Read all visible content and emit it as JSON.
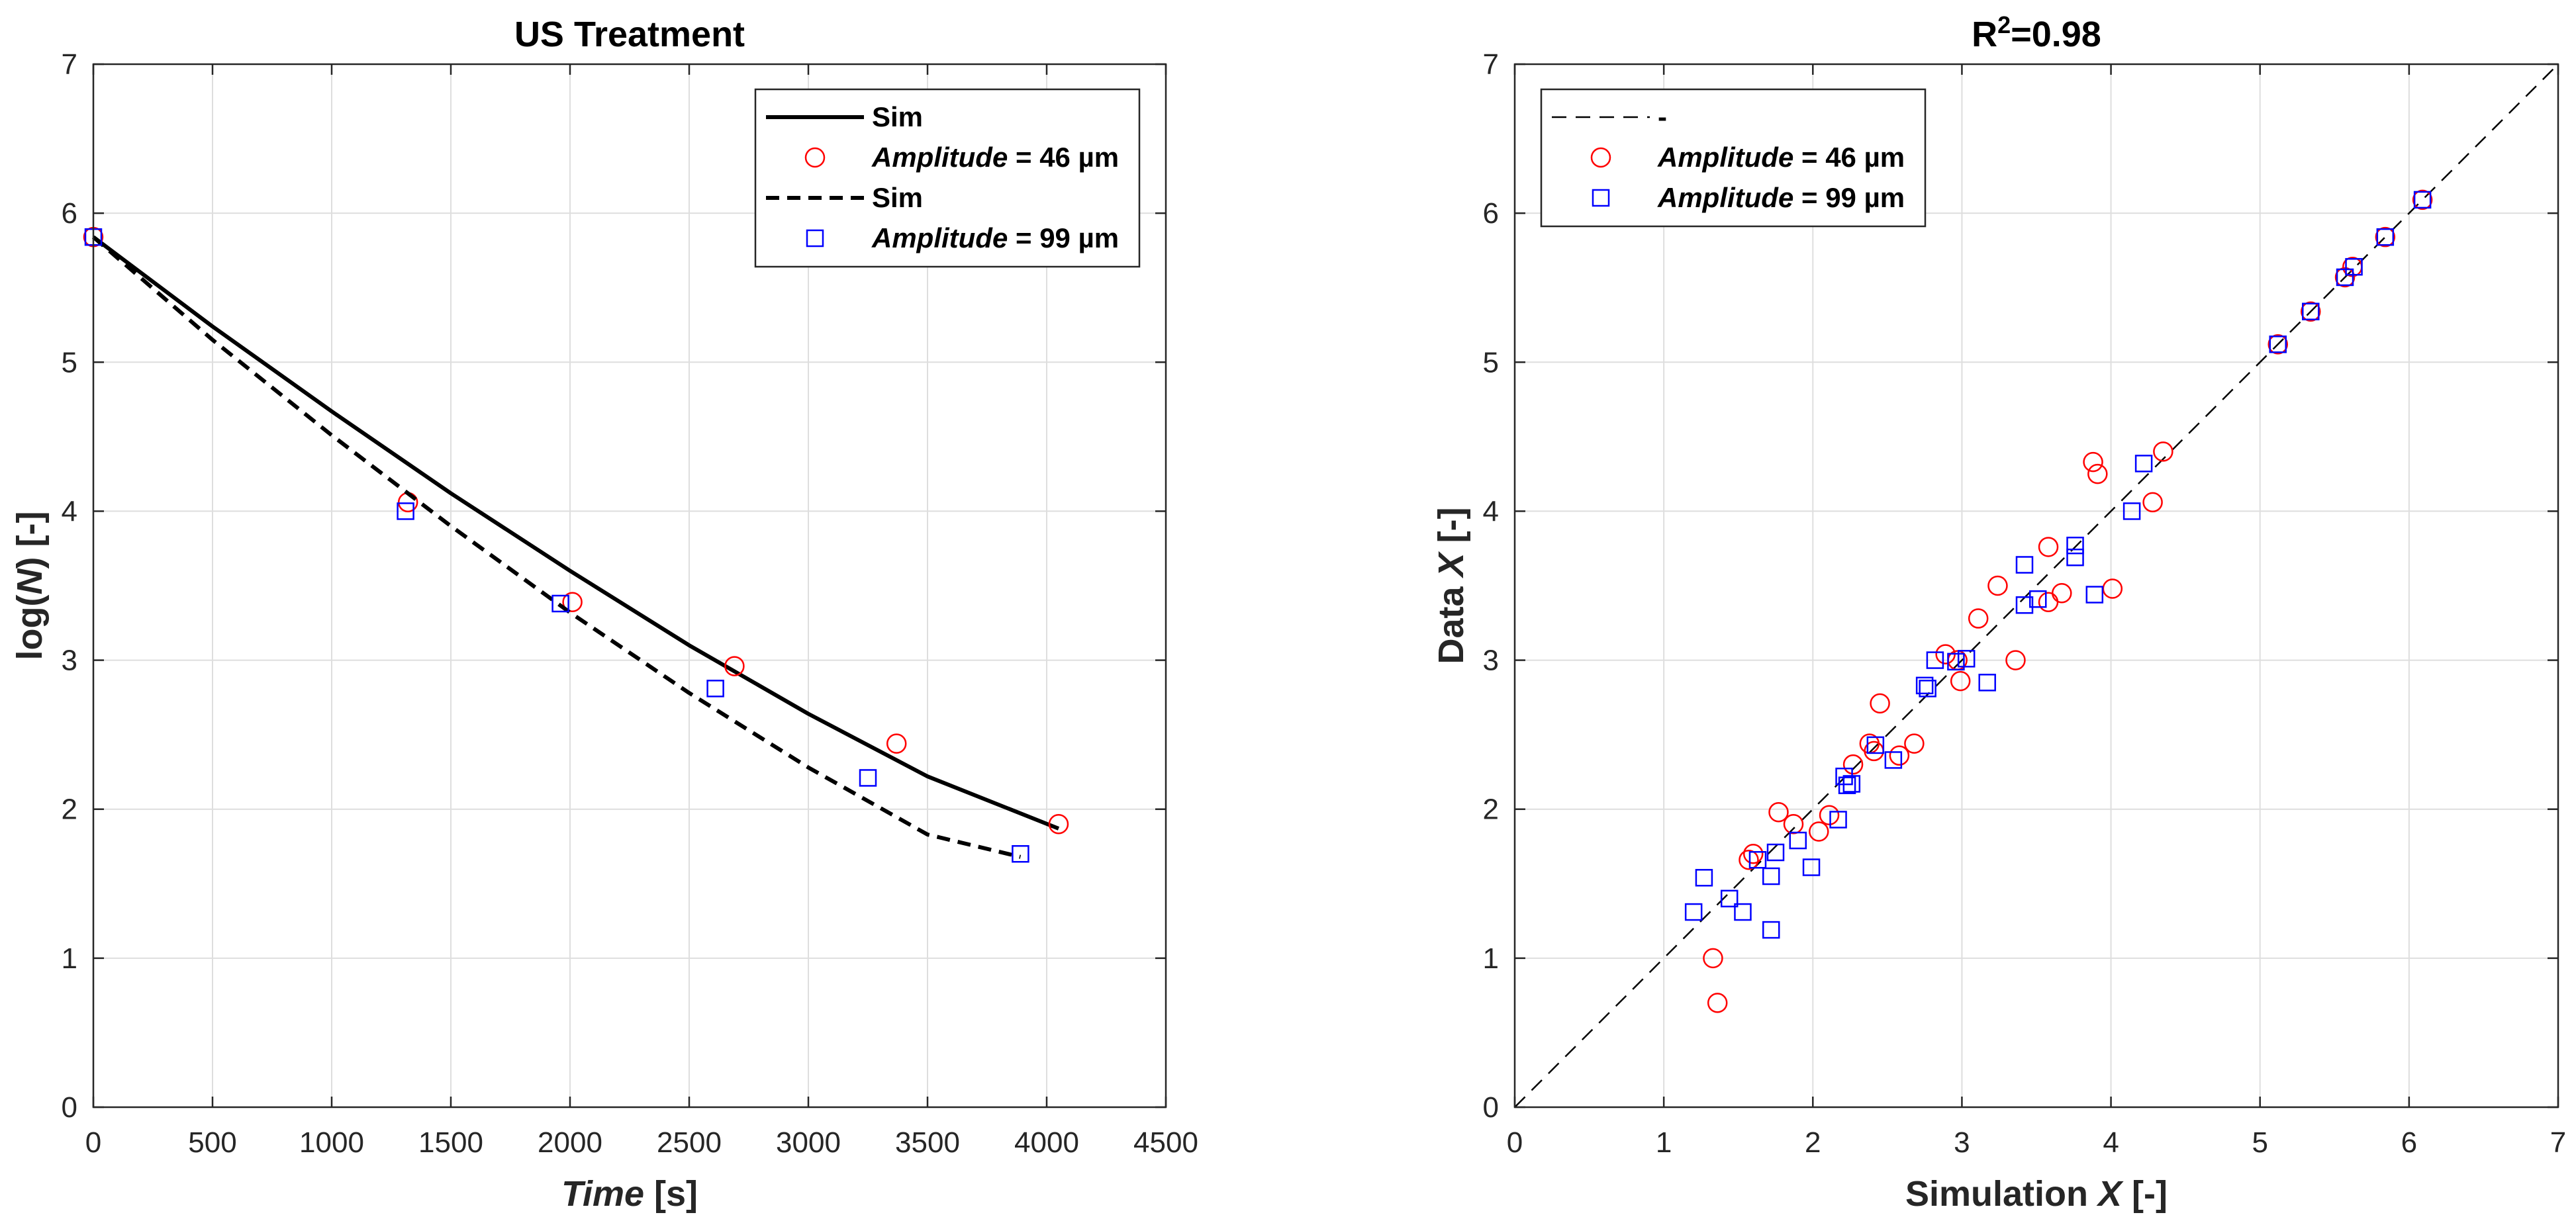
{
  "chart_data": [
    {
      "type": "line",
      "title": "US Treatment",
      "xlabel": {
        "italic": "Time",
        "plain": " [s]"
      },
      "ylabel": {
        "pre": "log(",
        "italic": "N",
        "post": ") [-]"
      },
      "xlim": [
        0,
        4500
      ],
      "ylim": [
        0,
        7
      ],
      "xticks": [
        0,
        500,
        1000,
        1500,
        2000,
        2500,
        3000,
        3500,
        4000,
        4500
      ],
      "yticks": [
        0,
        1,
        2,
        3,
        4,
        5,
        6,
        7
      ],
      "grid": true,
      "legend_position": "top-right",
      "legend": [
        {
          "style": "solid",
          "label": "Sim"
        },
        {
          "style": "circle",
          "italic": "Amplitude",
          "label": " = 46 µm"
        },
        {
          "style": "dashed",
          "label": "Sim"
        },
        {
          "style": "square",
          "italic": "Amplitude",
          "label": " = 99 µm"
        }
      ],
      "series": [
        {
          "name": "Sim (46 µm)",
          "kind": "line",
          "style": "solid",
          "color": "#000000",
          "x": [
            0,
            500,
            1000,
            1500,
            2000,
            2500,
            3000,
            3500,
            4050
          ],
          "y": [
            5.84,
            5.24,
            4.67,
            4.12,
            3.6,
            3.1,
            2.64,
            2.22,
            1.87
          ]
        },
        {
          "name": "Amplitude = 46 µm",
          "kind": "scatter",
          "marker": "circle",
          "color": "#ff0000",
          "x": [
            0,
            1320,
            2010,
            2690,
            3370,
            4050
          ],
          "y": [
            5.84,
            4.06,
            3.39,
            2.96,
            2.44,
            1.9
          ]
        },
        {
          "name": "Sim (99 µm)",
          "kind": "line",
          "style": "dashed",
          "color": "#000000",
          "x": [
            0,
            500,
            1000,
            1500,
            2000,
            2500,
            3000,
            3500,
            3890
          ],
          "y": [
            5.84,
            5.15,
            4.51,
            3.9,
            3.32,
            2.78,
            2.28,
            1.83,
            1.68
          ]
        },
        {
          "name": "Amplitude = 99 µm",
          "kind": "scatter",
          "marker": "square",
          "color": "#0000ff",
          "x": [
            0,
            1310,
            1960,
            2610,
            3250,
            3890
          ],
          "y": [
            5.84,
            4.0,
            3.38,
            2.81,
            2.21,
            1.7
          ]
        }
      ]
    },
    {
      "type": "scatter",
      "title": {
        "base": "R",
        "sup": "2",
        "rest": "=0.98"
      },
      "xlabel": {
        "pre": "Simulation ",
        "italic": "X",
        "post": " [-]"
      },
      "ylabel": {
        "pre": "Data ",
        "italic": "X",
        "post": " [-]"
      },
      "xlim": [
        0,
        7
      ],
      "ylim": [
        0,
        7
      ],
      "xticks": [
        0,
        1,
        2,
        3,
        4,
        5,
        6,
        7
      ],
      "yticks": [
        0,
        1,
        2,
        3,
        4,
        5,
        6,
        7
      ],
      "grid": true,
      "legend_position": "top-left",
      "legend": [
        {
          "style": "dashed-thin",
          "label": "-"
        },
        {
          "style": "circle",
          "italic": "Amplitude",
          "label": " = 46 µm"
        },
        {
          "style": "square",
          "italic": "Amplitude",
          "label": " = 99 µm"
        }
      ],
      "series": [
        {
          "name": "-",
          "kind": "line",
          "style": "dashed-thin",
          "color": "#000000",
          "x": [
            0,
            7
          ],
          "y": [
            0,
            7
          ]
        },
        {
          "name": "Amplitude = 46 µm",
          "kind": "scatter",
          "marker": "circle",
          "color": "#ff0000",
          "x": [
            6.09,
            5.84,
            5.62,
            5.57,
            5.34,
            5.12,
            4.35,
            3.88,
            3.91,
            4.28,
            3.58,
            3.24,
            3.11,
            4.01,
            3.67,
            3.58,
            3.36,
            2.89,
            2.97,
            2.99,
            2.45,
            2.38,
            2.41,
            2.68,
            2.58,
            2.27,
            2.11,
            2.04,
            1.77,
            1.87,
            1.6,
            1.57,
            1.33,
            1.36
          ],
          "y": [
            6.09,
            5.84,
            5.64,
            5.57,
            5.34,
            5.12,
            4.4,
            4.33,
            4.25,
            4.06,
            3.76,
            3.5,
            3.28,
            3.48,
            3.45,
            3.39,
            3.0,
            3.04,
            3.0,
            2.86,
            2.71,
            2.44,
            2.39,
            2.44,
            2.36,
            2.3,
            1.96,
            1.85,
            1.98,
            1.9,
            1.7,
            1.66,
            1.0,
            0.7
          ]
        },
        {
          "name": "Amplitude = 99 µm",
          "kind": "scatter",
          "marker": "square",
          "color": "#0000ff",
          "x": [
            6.09,
            5.84,
            5.63,
            5.57,
            5.34,
            5.12,
            4.22,
            4.14,
            3.76,
            3.76,
            3.42,
            3.51,
            3.42,
            3.89,
            3.17,
            2.82,
            2.96,
            3.03,
            2.75,
            2.77,
            2.42,
            2.54,
            2.23,
            2.26,
            2.21,
            2.17,
            1.9,
            1.99,
            1.75,
            1.72,
            1.63,
            1.53,
            1.44,
            1.2,
            1.27,
            1.72
          ],
          "y": [
            6.09,
            5.84,
            5.64,
            5.57,
            5.34,
            5.12,
            4.32,
            4.0,
            3.77,
            3.69,
            3.64,
            3.41,
            3.37,
            3.44,
            2.85,
            3.0,
            2.99,
            3.01,
            2.83,
            2.81,
            2.43,
            2.33,
            2.16,
            2.17,
            2.22,
            1.93,
            1.79,
            1.61,
            1.71,
            1.55,
            1.66,
            1.31,
            1.4,
            1.31,
            1.54,
            1.19
          ]
        }
      ]
    }
  ]
}
